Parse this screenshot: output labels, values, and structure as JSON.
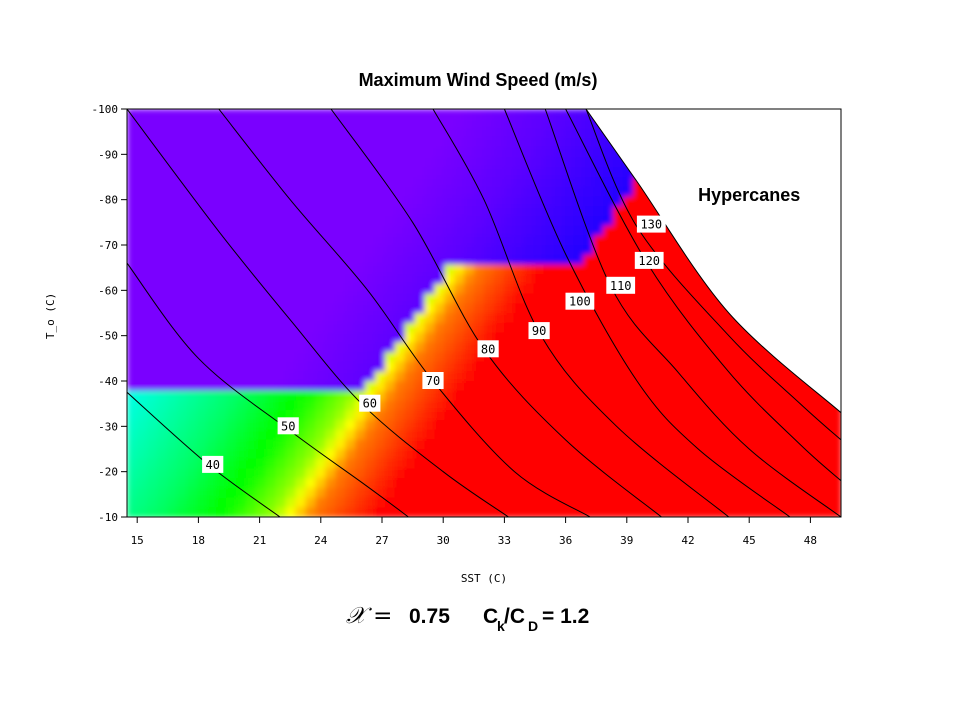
{
  "chart_data": {
    "type": "heatmap",
    "title": "Maximum Wind Speed (m/s)",
    "xlabel": "SST (C)",
    "ylabel": "T_o (C)",
    "xlim": [
      14.5,
      49.5
    ],
    "ylim": [
      -10,
      -100
    ],
    "xticks": [
      15,
      18,
      21,
      24,
      27,
      30,
      33,
      36,
      39,
      42,
      45,
      48
    ],
    "yticks": [
      -100,
      -90,
      -80,
      -70,
      -60,
      -50,
      -40,
      -30,
      -20,
      -10
    ],
    "colormap": [
      "#7a00ff",
      "#0000ff",
      "#00ffff",
      "#00ff00",
      "#ffff00",
      "#ff0000"
    ],
    "color_range": [
      35,
      140
    ],
    "grid": false,
    "contours": [
      {
        "level": 40,
        "points": [
          [
            14.5,
            -37.5
          ],
          [
            18.5,
            -21.5
          ],
          [
            22,
            -10
          ]
        ]
      },
      {
        "level": 50,
        "points": [
          [
            14.5,
            -66
          ],
          [
            18,
            -45
          ],
          [
            22.5,
            -29
          ],
          [
            26.2,
            -17
          ],
          [
            28.3,
            -10
          ]
        ]
      },
      {
        "level": 60,
        "points": [
          [
            14.5,
            -100
          ],
          [
            19,
            -73
          ],
          [
            22.5,
            -53.5
          ],
          [
            26,
            -35
          ],
          [
            30,
            -20
          ],
          [
            33.2,
            -10
          ]
        ]
      },
      {
        "level": 70,
        "points": [
          [
            19,
            -100
          ],
          [
            22.5,
            -80
          ],
          [
            26.3,
            -60
          ],
          [
            29.5,
            -40
          ],
          [
            33.5,
            -20
          ],
          [
            37.2,
            -10
          ]
        ]
      },
      {
        "level": 80,
        "points": [
          [
            24.5,
            -100
          ],
          [
            28.5,
            -75
          ],
          [
            32,
            -47
          ],
          [
            36,
            -27
          ],
          [
            40.7,
            -10
          ]
        ]
      },
      {
        "level": 90,
        "points": [
          [
            29.5,
            -100
          ],
          [
            32,
            -80
          ],
          [
            34.8,
            -50
          ],
          [
            38.5,
            -30
          ],
          [
            44,
            -10
          ]
        ]
      },
      {
        "level": 100,
        "points": [
          [
            33,
            -100
          ],
          [
            36,
            -68
          ],
          [
            39.5,
            -40
          ],
          [
            42.5,
            -25
          ],
          [
            47,
            -10
          ]
        ]
      },
      {
        "level": 110,
        "points": [
          [
            35,
            -100
          ],
          [
            38.2,
            -61
          ],
          [
            41.5,
            -42
          ],
          [
            45,
            -25
          ],
          [
            49.5,
            -10
          ]
        ]
      },
      {
        "level": 120,
        "points": [
          [
            36,
            -100
          ],
          [
            40,
            -66
          ],
          [
            44,
            -42
          ],
          [
            47.5,
            -26
          ],
          [
            49.5,
            -18
          ]
        ]
      },
      {
        "level": 130,
        "points": [
          [
            37,
            -100
          ],
          [
            39.5,
            -74
          ],
          [
            44,
            -50
          ],
          [
            47.5,
            -35
          ],
          [
            49.5,
            -27
          ]
        ]
      }
    ],
    "contour_labels": [
      {
        "text": "40",
        "x": 18.7,
        "y": -21.5
      },
      {
        "text": "50",
        "x": 22.4,
        "y": -30
      },
      {
        "text": "60",
        "x": 26.4,
        "y": -35
      },
      {
        "text": "70",
        "x": 29.5,
        "y": -40
      },
      {
        "text": "80",
        "x": 32.2,
        "y": -47
      },
      {
        "text": "90",
        "x": 34.7,
        "y": -51
      },
      {
        "text": "100",
        "x": 36.7,
        "y": -57.5
      },
      {
        "text": "110",
        "x": 38.7,
        "y": -61
      },
      {
        "text": "120",
        "x": 40.1,
        "y": -66.5
      },
      {
        "text": "130",
        "x": 40.2,
        "y": -74.5
      }
    ],
    "blank_region_boundary": [
      [
        37,
        -100
      ],
      [
        39.5,
        -84
      ],
      [
        44,
        -55
      ],
      [
        49.5,
        -33
      ]
    ],
    "annotation": {
      "text": "Hypercanes",
      "x": 45,
      "y": -81
    }
  },
  "footer": {
    "symbol": "𝒳 =",
    "chi_value": "0.75",
    "ck": "C",
    "ck_sub": "k",
    "slash": "/C",
    "cd_sub": "D",
    "ratio": "= 1.2"
  }
}
